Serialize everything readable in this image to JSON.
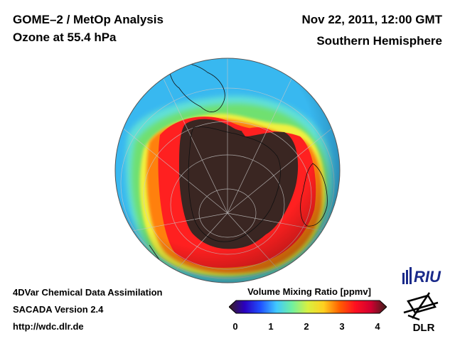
{
  "header": {
    "title_line1": "GOME–2 / MetOp Analysis",
    "title_line2": "Ozone at 55.4 hPa",
    "date_line": "Nov 22, 2011, 12:00 GMT",
    "region_line": "Southern Hemisphere"
  },
  "footer": {
    "line1": "4DVar Chemical Data Assimilation",
    "line2": "SACADA Version 2.4",
    "line3": "http://wdc.dlr.de"
  },
  "colorbar": {
    "title": "Volume Mixing Ratio [ppmv]",
    "ticks": [
      "0",
      "1",
      "2",
      "3",
      "4"
    ],
    "range": [
      0,
      4
    ],
    "colors": [
      "#3a1f1a",
      "#2a00c0",
      "#2050ff",
      "#40c8ff",
      "#70f0a0",
      "#d8f040",
      "#ffd020",
      "#ff6000",
      "#ff1020",
      "#d00030",
      "#3a1f1a"
    ]
  },
  "logos": {
    "riu": "RIU",
    "dlr": "DLR"
  },
  "map": {
    "projection": "orthographic, south pole view",
    "colors": {
      "outer": "#38b8f0",
      "green": "#70e070",
      "yellow": "#f0f040",
      "red": "#ff2020",
      "hole": "#3a2622"
    }
  }
}
